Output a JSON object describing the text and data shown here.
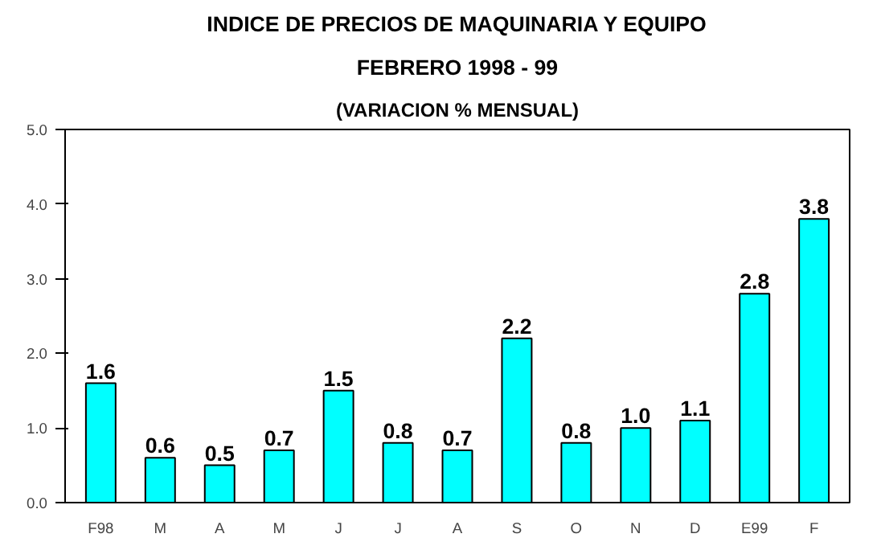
{
  "chart_data": {
    "type": "bar",
    "title": "INDICE DE PRECIOS DE MAQUINARIA Y EQUIPO",
    "subtitle": "FEBRERO 1998 - 99",
    "annotations": [
      "(VARIACION % MENSUAL)"
    ],
    "categories": [
      "F98",
      "M",
      "A",
      "M",
      "J",
      "J",
      "A",
      "S",
      "O",
      "N",
      "D",
      "E99",
      "F"
    ],
    "values": [
      1.6,
      0.6,
      0.5,
      0.7,
      1.5,
      0.8,
      0.7,
      2.2,
      0.8,
      1.0,
      1.1,
      2.8,
      3.8
    ],
    "value_labels": [
      "1.6",
      "0.6",
      "0.5",
      "0.7",
      "1.5",
      "0.8",
      "0.7",
      "2.2",
      "0.8",
      "1.0",
      "1.1",
      "2.8",
      "3.8"
    ],
    "color": "#00ffff",
    "ylim": [
      0,
      5
    ],
    "yticks": [
      {
        "value": 0,
        "label": "0.0"
      },
      {
        "value": 1,
        "label": "1.0"
      },
      {
        "value": 2,
        "label": "2.0"
      },
      {
        "value": 3,
        "label": "3.0"
      },
      {
        "value": 4,
        "label": "4.0"
      },
      {
        "value": 5,
        "label": "5.0"
      }
    ],
    "grid": false
  }
}
